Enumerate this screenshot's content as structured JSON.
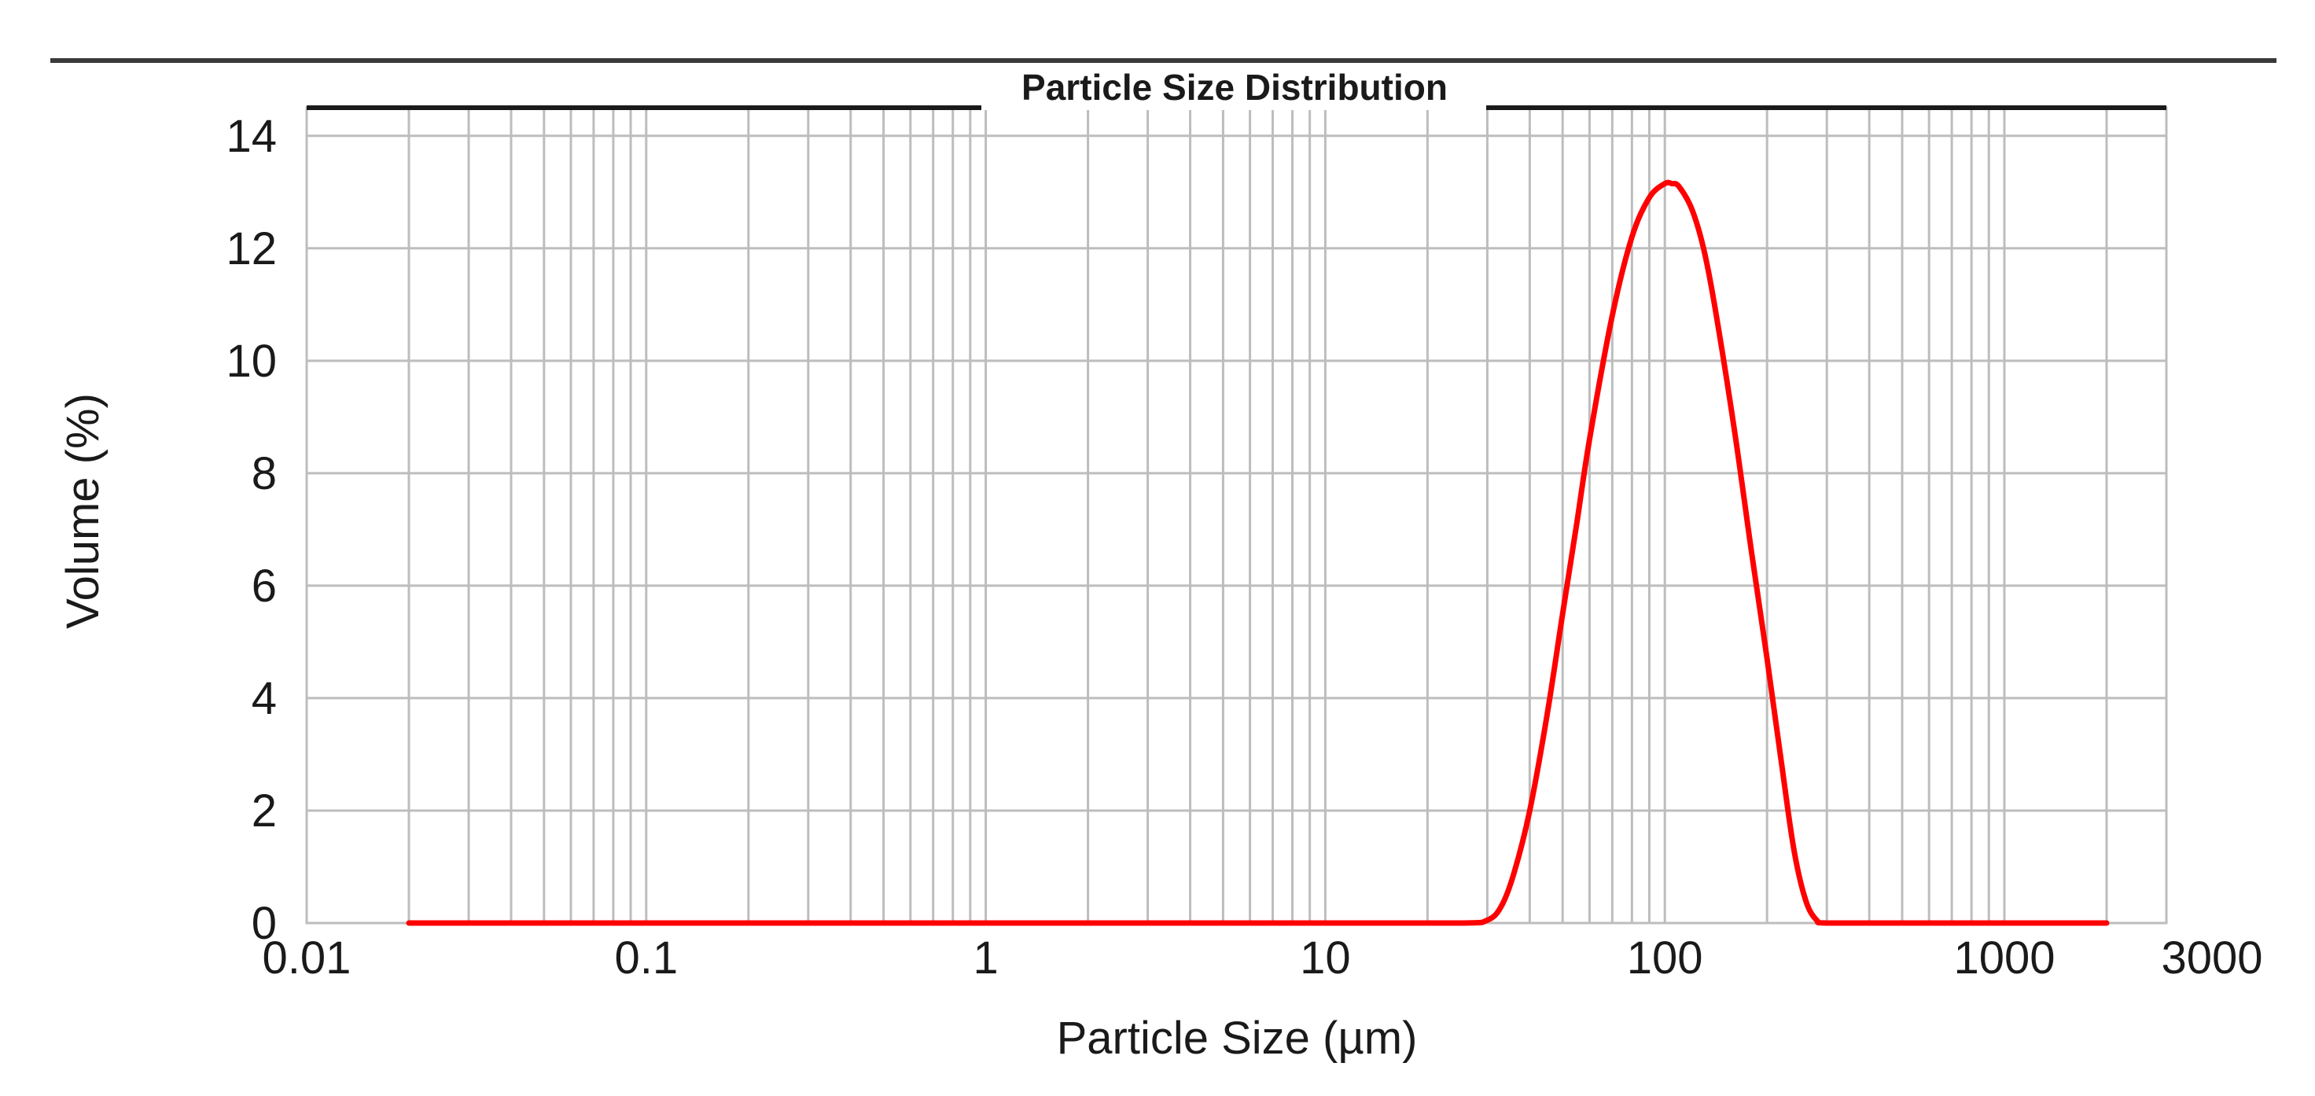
{
  "chart_data": {
    "type": "line",
    "title": "Particle Size Distribution",
    "xlabel": "Particle Size (µm)",
    "ylabel": "Volume (%)",
    "xscale": "log",
    "xlim": [
      0.01,
      3000
    ],
    "ylim": [
      0,
      14.5
    ],
    "grid": true,
    "legend": "none",
    "x_ticks": [
      {
        "value": 0.01,
        "label": "0.01"
      },
      {
        "value": 0.1,
        "label": "0.1"
      },
      {
        "value": 1,
        "label": "1"
      },
      {
        "value": 10,
        "label": "10"
      },
      {
        "value": 100,
        "label": "100"
      },
      {
        "value": 1000,
        "label": "1000"
      },
      {
        "value": 3000,
        "label": "3000"
      }
    ],
    "y_ticks": [
      {
        "value": 0,
        "label": "0"
      },
      {
        "value": 2,
        "label": "2"
      },
      {
        "value": 4,
        "label": "4"
      },
      {
        "value": 6,
        "label": "6"
      },
      {
        "value": 8,
        "label": "8"
      },
      {
        "value": 10,
        "label": "10"
      },
      {
        "value": 12,
        "label": "12"
      },
      {
        "value": 14,
        "label": "14"
      }
    ],
    "series": [
      {
        "color": "#ff0000",
        "x": [
          0.02,
          1,
          10,
          25,
          30,
          33,
          36,
          40,
          45,
          50,
          55,
          60,
          70,
          80,
          90,
          100,
          105,
          110,
          120,
          130,
          140,
          160,
          180,
          200,
          220,
          240,
          260,
          280,
          300,
          500,
          1000,
          2000
        ],
        "y": [
          0,
          0,
          0,
          0,
          0.05,
          0.3,
          0.9,
          2.0,
          3.7,
          5.5,
          7.1,
          8.6,
          10.8,
          12.2,
          12.9,
          13.15,
          13.15,
          13.1,
          12.7,
          12.0,
          11.0,
          8.8,
          6.6,
          4.7,
          2.9,
          1.3,
          0.4,
          0.05,
          0,
          0,
          0,
          0
        ]
      }
    ],
    "colors": {
      "grid": "#bdbdbd",
      "axis": "#1a1a1a",
      "top_rule": "#3a3a3a"
    }
  }
}
